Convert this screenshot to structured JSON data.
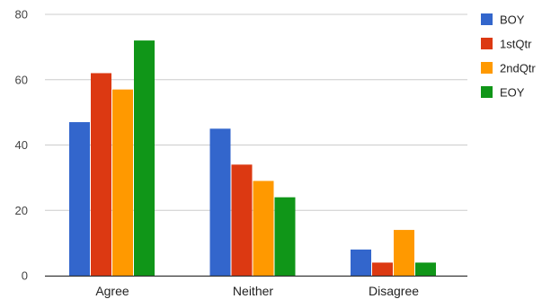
{
  "chart_data": {
    "type": "bar",
    "title": "",
    "xlabel": "",
    "ylabel": "",
    "categories": [
      "Agree",
      "Neither",
      "Disagree"
    ],
    "series": [
      {
        "name": "BOY",
        "values": [
          47,
          45,
          8
        ],
        "color": "#3366cc"
      },
      {
        "name": "1stQtr",
        "values": [
          62,
          34,
          4
        ],
        "color": "#dc3912"
      },
      {
        "name": "2ndQtr",
        "values": [
          57,
          29,
          14
        ],
        "color": "#ff9900"
      },
      {
        "name": "EOY",
        "values": [
          72,
          24,
          4
        ],
        "color": "#109618"
      }
    ],
    "ylim": [
      0,
      80
    ],
    "yticks": [
      0,
      20,
      40,
      60,
      80
    ],
    "grid": true,
    "legend_position": "right"
  }
}
